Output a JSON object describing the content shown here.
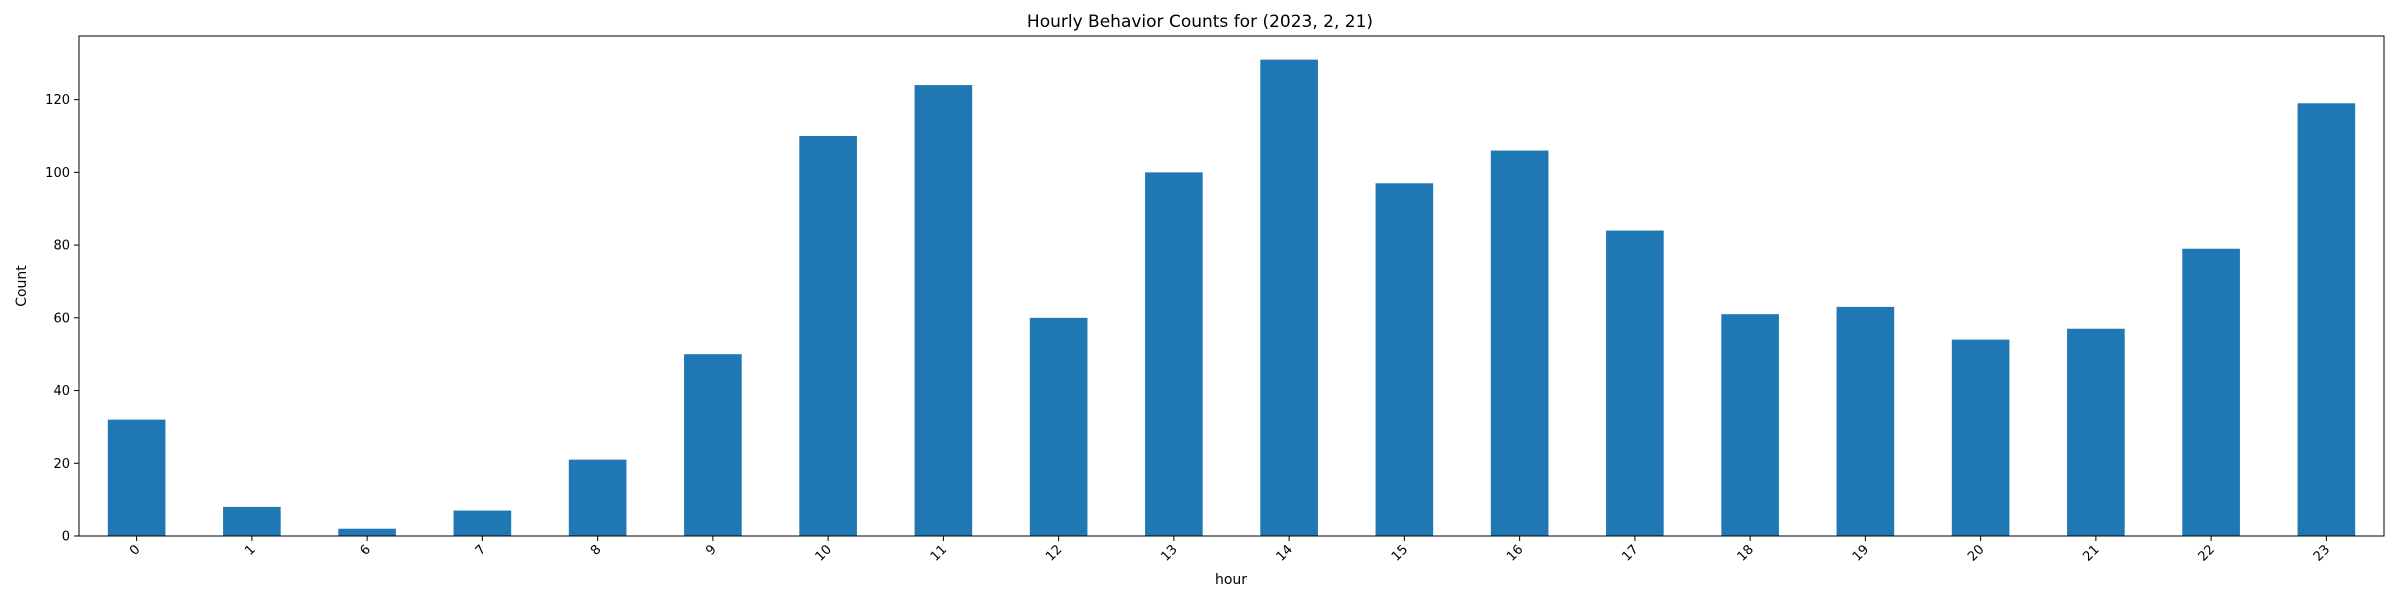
{
  "chart_data": {
    "type": "bar",
    "title": "Hourly Behavior Counts for (2023, 2, 21)",
    "xlabel": "hour",
    "ylabel": "Count",
    "categories": [
      "0",
      "1",
      "6",
      "7",
      "8",
      "9",
      "10",
      "11",
      "12",
      "13",
      "14",
      "15",
      "16",
      "17",
      "18",
      "19",
      "20",
      "21",
      "22",
      "23"
    ],
    "values": [
      32,
      8,
      2,
      7,
      21,
      50,
      110,
      124,
      60,
      100,
      131,
      97,
      106,
      84,
      61,
      63,
      54,
      57,
      79,
      119
    ],
    "ylim": [
      0,
      137.5
    ],
    "yticks": [
      0,
      20,
      40,
      60,
      80,
      100,
      120
    ],
    "bar_color": "#1f77b4",
    "grid": false,
    "xtick_rotation": 45
  }
}
